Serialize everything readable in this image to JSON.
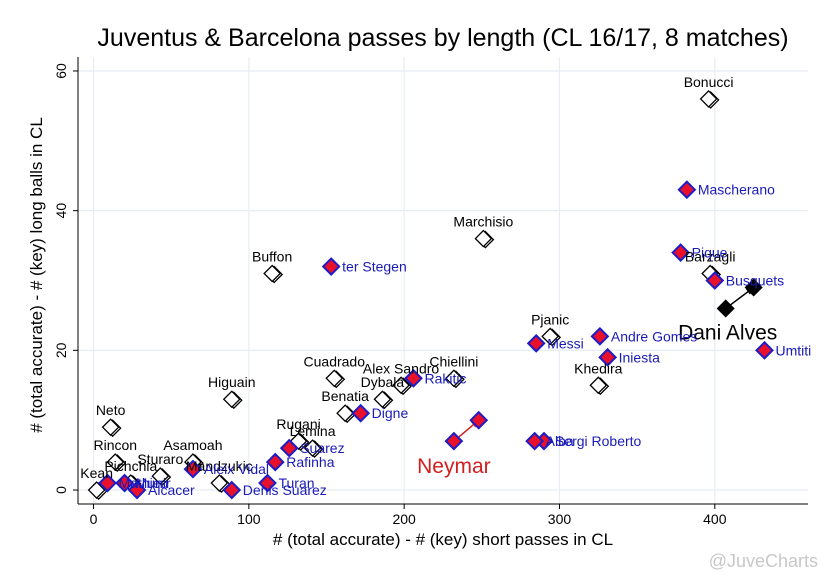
{
  "chart_data": {
    "type": "scatter",
    "title": "Juventus & Barcelona passes by length (CL 16/17, 8 matches)",
    "xlabel": "# (total accurate) - # (key) short passes in CL",
    "ylabel": "# (total accurate) - # (key) long balls in CL",
    "xlim": [
      -10,
      460
    ],
    "ylim": [
      -2,
      62
    ],
    "xticks": [
      0,
      100,
      200,
      300,
      400
    ],
    "yticks": [
      0,
      20,
      40,
      60
    ],
    "grid": true,
    "colors": {
      "juve_fill": "#ffffff",
      "juve_stroke": "#000000",
      "barca_fill": "#e8102a",
      "barca_stroke": "#1c1cc8",
      "barca_label": "#1a1ab8",
      "grid": "#e6eef4",
      "arrow_red": "#d21e1e"
    },
    "series": [
      {
        "team": "juventus",
        "points": [
          {
            "label": "Bonucci",
            "x": 396,
            "y": 56
          },
          {
            "label": "Marchisio",
            "x": 251,
            "y": 36
          },
          {
            "label": "Barzagli",
            "x": 397,
            "y": 31
          },
          {
            "label": "Buffon",
            "x": 115,
            "y": 31
          },
          {
            "label": "Pjanic",
            "x": 294,
            "y": 22
          },
          {
            "label": "Khedira",
            "x": 325,
            "y": 15
          },
          {
            "label": "Chiellini",
            "x": 232,
            "y": 16
          },
          {
            "label": "Alex Sandro",
            "x": 198,
            "y": 15
          },
          {
            "label": "Dybala",
            "x": 186,
            "y": 13
          },
          {
            "label": "Cuadrado",
            "x": 155,
            "y": 16
          },
          {
            "label": "Benatia",
            "x": 162,
            "y": 11
          },
          {
            "label": "Higuain",
            "x": 89,
            "y": 13
          },
          {
            "label": "Rugani",
            "x": 132,
            "y": 7
          },
          {
            "label": "Lemina",
            "x": 141,
            "y": 6
          },
          {
            "label": "Neto",
            "x": 11,
            "y": 9
          },
          {
            "label": "Asamoah",
            "x": 64,
            "y": 4
          },
          {
            "label": "Mandzukic",
            "x": 81,
            "y": 1
          },
          {
            "label": "Rincon",
            "x": 14,
            "y": 4
          },
          {
            "label": "Sturaro",
            "x": 43,
            "y": 2
          },
          {
            "label": "Pichchia",
            "x": 24,
            "y": 1
          },
          {
            "label": "Kean",
            "x": 2,
            "y": 0
          }
        ]
      },
      {
        "team": "barcelona",
        "points": [
          {
            "label": "Mascherano",
            "x": 382,
            "y": 43
          },
          {
            "label": "Pique",
            "x": 378,
            "y": 34
          },
          {
            "label": "Busquets",
            "x": 400,
            "y": 30
          },
          {
            "label": "Umtiti",
            "x": 432,
            "y": 20
          },
          {
            "label": "Messi",
            "x": 285,
            "y": 21
          },
          {
            "label": "Andre Gomes",
            "x": 326,
            "y": 22
          },
          {
            "label": "Iniesta",
            "x": 331,
            "y": 19
          },
          {
            "label": "ter Stegen",
            "x": 153,
            "y": 32
          },
          {
            "label": "Rakitic",
            "x": 206,
            "y": 16
          },
          {
            "label": "Digne",
            "x": 172,
            "y": 11
          },
          {
            "label": "Sergi Roberto",
            "x": 290,
            "y": 7
          },
          {
            "label": "Alba",
            "x": 284,
            "y": 7
          },
          {
            "label": "Suarez",
            "x": 126,
            "y": 6
          },
          {
            "label": "Rafinha",
            "x": 117,
            "y": 4
          },
          {
            "label": "Turan",
            "x": 112,
            "y": 1
          },
          {
            "label": "Aleix Vidal",
            "x": 64,
            "y": 3
          },
          {
            "label": "Denis Suarez",
            "x": 89,
            "y": 0
          },
          {
            "label": "Alcacer",
            "x": 28,
            "y": 0
          },
          {
            "label": "Munir",
            "x": 20,
            "y": 1
          },
          {
            "label": "Mathieu",
            "x": 9,
            "y": 1
          }
        ]
      }
    ],
    "annotations": [
      {
        "text": "Neymar",
        "team": "barcelona",
        "from": {
          "x": 232,
          "y": 7
        },
        "to": {
          "x": 248,
          "y": 10
        }
      },
      {
        "text": "Dani Alves",
        "team": "juventus",
        "from": {
          "x": 407,
          "y": 26
        },
        "to": {
          "x": 425,
          "y": 29
        }
      }
    ],
    "watermark": "@JuveCharts"
  }
}
